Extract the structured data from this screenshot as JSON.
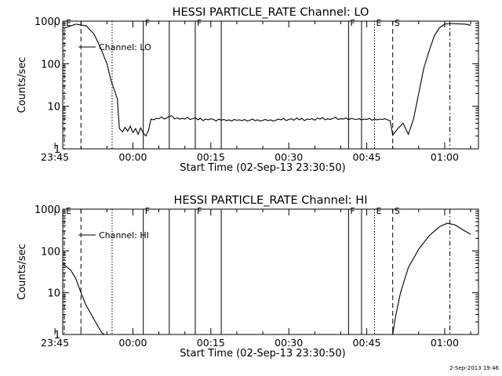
{
  "footer": {
    "timestamp": "2-Sep-2013 19:46"
  },
  "chart_data": [
    {
      "type": "line",
      "title": "HESSI PARTICLE_RATE Channel: LO",
      "xlabel": "Start Time (02-Sep-13 23:30:50)",
      "ylabel": "Counts/sec",
      "yscale": "log",
      "ylim": [
        1,
        1000
      ],
      "xlim_minutes": [
        -13.5,
        66.5
      ],
      "x_ticks": [
        {
          "label": "23:45",
          "minute": -15
        },
        {
          "label": "00:00",
          "minute": 0
        },
        {
          "label": "00:15",
          "minute": 15
        },
        {
          "label": "00:30",
          "minute": 30
        },
        {
          "label": "00:45",
          "minute": 45
        },
        {
          "label": "01:00",
          "minute": 60
        }
      ],
      "y_ticks": [
        "1",
        "10",
        "100",
        "1000"
      ],
      "legend": {
        "label": "Channel: LO",
        "placement": "upper-left"
      },
      "series": [
        {
          "name": "Channel: LO",
          "x": [
            -13.0,
            -11.0,
            -9.0,
            -7.5,
            -6.3,
            -5.0,
            -4.2,
            -3.0,
            -2.6,
            -2.0,
            -1.5,
            -1.0,
            -0.5,
            0.0,
            0.5,
            1.0,
            1.5,
            2.0,
            2.5,
            3.0,
            3.5,
            4.0,
            4.5,
            5.0,
            5.5,
            6.0,
            6.5,
            7.0,
            7.5,
            8.0,
            8.5,
            9.0,
            9.5,
            10.0,
            10.5,
            11.0,
            11.5,
            12.0,
            12.5,
            13.0,
            13.5,
            14.0,
            14.5,
            15.0,
            15.5,
            16.0,
            16.5,
            17.0,
            17.5,
            18.0,
            18.5,
            19.0,
            19.5,
            20.0,
            20.5,
            21.0,
            21.5,
            22.0,
            22.5,
            23.0,
            23.5,
            24.0,
            24.5,
            25.0,
            25.5,
            26.0,
            26.5,
            27.0,
            27.5,
            28.0,
            28.5,
            29.0,
            29.5,
            30.0,
            30.5,
            31.0,
            31.5,
            32.0,
            32.5,
            33.0,
            33.5,
            34.0,
            34.5,
            35.0,
            35.5,
            36.0,
            36.5,
            37.0,
            37.5,
            38.0,
            38.5,
            39.0,
            39.5,
            40.0,
            40.5,
            41.0,
            41.5,
            42.0,
            42.5,
            43.0,
            43.5,
            44.0,
            44.5,
            45.0,
            45.5,
            46.0,
            46.5,
            47.0,
            47.5,
            48.0,
            48.5,
            49.0,
            49.5,
            50.0,
            51.0,
            52.0,
            53.0,
            54.0,
            55.0,
            56.0,
            57.0,
            58.0,
            59.0,
            60.0,
            61.0,
            62.0,
            63.0,
            64.0,
            65.0
          ],
          "values": [
            700,
            850,
            780,
            500,
            250,
            100,
            40,
            15,
            3,
            2.5,
            3.2,
            2.6,
            3.4,
            2.4,
            3.0,
            2.2,
            3.1,
            2.3,
            2.0,
            2.7,
            5.0,
            4.8,
            5.2,
            5.1,
            5.6,
            5.0,
            5.3,
            5.8,
            6.0,
            5.1,
            5.3,
            5.0,
            5.2,
            5.0,
            5.5,
            4.9,
            5.1,
            5.4,
            4.8,
            5.2,
            4.6,
            5.0,
            4.8,
            5.1,
            4.9,
            4.5,
            5.0,
            4.7,
            4.9,
            4.6,
            4.8,
            4.5,
            4.9,
            4.7,
            4.8,
            4.6,
            4.9,
            4.5,
            4.7,
            5.0,
            4.6,
            4.8,
            4.5,
            4.7,
            4.9,
            4.6,
            4.8,
            4.5,
            4.7,
            5.0,
            4.8,
            5.2,
            4.6,
            4.9,
            5.1,
            4.7,
            5.3,
            4.8,
            5.2,
            4.6,
            5.0,
            4.9,
            5.1,
            4.7,
            5.3,
            5.0,
            5.4,
            4.8,
            5.1,
            4.9,
            5.2,
            5.5,
            4.9,
            5.1,
            5.0,
            5.3,
            4.8,
            5.2,
            5.0,
            4.9,
            5.1,
            4.8,
            5.0,
            4.9,
            5.2,
            4.7,
            5.0,
            4.8,
            5.0,
            4.9,
            5.1,
            4.8,
            4.6,
            2.1,
            3.0,
            4.0,
            2.2,
            5.0,
            20,
            80,
            200,
            450,
            700,
            850,
            880,
            870,
            860,
            850,
            800
          ]
        }
      ],
      "markers": [
        {
          "minute": -13.2,
          "label": "E",
          "style": "dash-dot"
        },
        {
          "minute": -10.0,
          "label": "",
          "style": "dashed"
        },
        {
          "minute": -4.0,
          "label": "",
          "style": "dotted"
        },
        {
          "minute": 2.0,
          "label": "F",
          "style": "solid"
        },
        {
          "minute": 7.0,
          "label": "",
          "style": "solid"
        },
        {
          "minute": 12.0,
          "label": "F",
          "style": "solid"
        },
        {
          "minute": 17.0,
          "label": "",
          "style": "solid"
        },
        {
          "minute": 41.5,
          "label": "F",
          "style": "solid"
        },
        {
          "minute": 44.0,
          "label": "",
          "style": "solid"
        },
        {
          "minute": 46.5,
          "label": "E",
          "style": "dotted"
        },
        {
          "minute": 50.0,
          "label": "S",
          "style": "dashed"
        },
        {
          "minute": 61.0,
          "label": "",
          "style": "dash-dot"
        }
      ]
    },
    {
      "type": "line",
      "title": "HESSI PARTICLE_RATE Channel: HI",
      "xlabel": "Start Time (02-Sep-13 23:30:50)",
      "ylabel": "Counts/sec",
      "yscale": "log",
      "ylim": [
        1,
        1000
      ],
      "xlim_minutes": [
        -13.5,
        66.5
      ],
      "x_ticks": [
        {
          "label": "23:45",
          "minute": -15
        },
        {
          "label": "00:00",
          "minute": 0
        },
        {
          "label": "00:15",
          "minute": 15
        },
        {
          "label": "00:30",
          "minute": 30
        },
        {
          "label": "00:45",
          "minute": 45
        },
        {
          "label": "01:00",
          "minute": 60
        }
      ],
      "y_ticks": [
        "1",
        "10",
        "100",
        "1000"
      ],
      "legend": {
        "label": "Channel: HI",
        "placement": "upper-left"
      },
      "series": [
        {
          "name": "Channel: HI",
          "x": [
            -13.5,
            -12.0,
            -11.0,
            -10.0,
            -9.0,
            -8.0,
            -7.0,
            -6.0,
            -5.5,
            50.0,
            50.5,
            51.5,
            53.0,
            55.0,
            57.0,
            59.0,
            60.5,
            62.0,
            63.5,
            65.0
          ],
          "values": [
            50,
            35,
            22,
            10,
            5,
            3,
            1.8,
            1.1,
            1.0,
            1.0,
            2.5,
            10,
            40,
            110,
            230,
            380,
            460,
            420,
            320,
            250
          ]
        }
      ],
      "markers": [
        {
          "minute": -13.2,
          "label": "E",
          "style": "dash-dot"
        },
        {
          "minute": -10.0,
          "label": "",
          "style": "dashed"
        },
        {
          "minute": -4.0,
          "label": "",
          "style": "dotted"
        },
        {
          "minute": 2.0,
          "label": "F",
          "style": "solid"
        },
        {
          "minute": 7.0,
          "label": "",
          "style": "solid"
        },
        {
          "minute": 12.0,
          "label": "F",
          "style": "solid"
        },
        {
          "minute": 17.0,
          "label": "",
          "style": "solid"
        },
        {
          "minute": 41.5,
          "label": "F",
          "style": "solid"
        },
        {
          "minute": 44.0,
          "label": "",
          "style": "solid"
        },
        {
          "minute": 46.5,
          "label": "E",
          "style": "dotted"
        },
        {
          "minute": 50.0,
          "label": "S",
          "style": "dashed"
        },
        {
          "minute": 61.0,
          "label": "",
          "style": "dash-dot"
        }
      ]
    }
  ]
}
